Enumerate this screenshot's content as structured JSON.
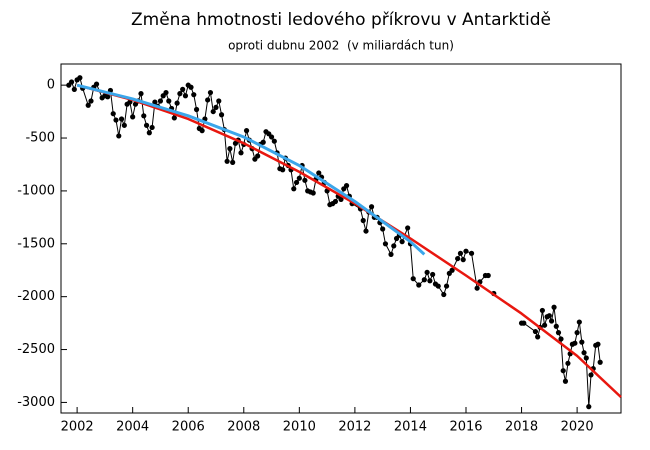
{
  "chart_data": {
    "type": "line",
    "title": "Změna hmotnosti ledového příkrovu v Antarktidě",
    "subtitle": "oproti dubnu 2002  (v miliardách tun)",
    "xlim": [
      2001.42,
      2021.58
    ],
    "ylim": [
      -3100,
      200
    ],
    "xticks": [
      2002,
      2004,
      2006,
      2008,
      2010,
      2012,
      2014,
      2016,
      2018,
      2020
    ],
    "yticks": [
      0,
      -500,
      -1000,
      -1500,
      -2000,
      -2500,
      -3000
    ],
    "series": [
      {
        "color": "#000000",
        "markers": true,
        "x": [
          2001.7,
          2001.8,
          2001.9,
          2002.0,
          2002.1,
          2002.2,
          2002.4,
          2002.5,
          2002.6,
          2002.7,
          2002.9,
          2003.0,
          2003.1,
          2003.2,
          2003.3,
          2003.4,
          2003.5,
          2003.6,
          2003.7,
          2003.8,
          2003.9,
          2004.0,
          2004.1,
          2004.2,
          2004.3,
          2004.4,
          2004.5,
          2004.6,
          2004.7,
          2004.8,
          2004.9,
          2005.0,
          2005.1,
          2005.2,
          2005.3,
          2005.4,
          2005.5,
          2005.6,
          2005.7,
          2005.8,
          2005.9,
          2006.0,
          2006.1,
          2006.2,
          2006.3,
          2006.4,
          2006.5,
          2006.6,
          2006.7,
          2006.8,
          2006.9,
          2007.0,
          2007.1,
          2007.2,
          2007.3,
          2007.4,
          2007.5,
          2007.6,
          2007.7,
          2007.8,
          2007.9,
          2008.0,
          2008.1,
          2008.2,
          2008.3,
          2008.4,
          2008.5,
          2008.6,
          2008.7,
          2008.8,
          2008.9,
          2009.0,
          2009.1,
          2009.2,
          2009.3,
          2009.4,
          2009.5,
          2009.6,
          2009.7,
          2009.8,
          2009.9,
          2010.0,
          2010.1,
          2010.2,
          2010.3,
          2010.4,
          2010.5,
          2010.6,
          2010.7,
          2010.8,
          2010.9,
          2011.0,
          2011.1,
          2011.2,
          2011.3,
          2011.4,
          2011.5,
          2011.6,
          2011.7,
          2011.8,
          2011.9,
          2012.2,
          2012.3,
          2012.4,
          2012.5,
          2012.6,
          2012.7,
          2012.8,
          2012.9,
          2013.0,
          2013.1,
          2013.3,
          2013.4,
          2013.5,
          2013.6,
          2013.7,
          2013.9,
          2014.0,
          2014.1,
          2014.3,
          2014.5,
          2014.6,
          2014.7,
          2014.8,
          2014.9,
          2015.0,
          2015.2,
          2015.3,
          2015.4,
          2015.5,
          2015.7,
          2015.8,
          2015.9,
          2016.0,
          2016.2,
          2016.4,
          2016.5,
          2016.7,
          2016.8,
          2016.9,
          2017.0,
          null,
          2018.0,
          2018.08,
          2018.5,
          2018.58,
          2018.67,
          2018.75,
          2018.83,
          2018.92,
          2019.0,
          2019.08,
          2019.17,
          2019.25,
          2019.33,
          2019.42,
          2019.5,
          2019.58,
          2019.67,
          2019.75,
          2019.83,
          2019.92,
          2020.0,
          2020.08,
          2020.17,
          2020.25,
          2020.33,
          2020.42,
          2020.5,
          2020.58,
          2020.67,
          2020.75,
          2020.83
        ],
        "values": [
          0,
          30,
          -40,
          50,
          70,
          -30,
          -190,
          -150,
          -20,
          10,
          -120,
          -100,
          -110,
          -50,
          -270,
          -330,
          -480,
          -320,
          -380,
          -180,
          -160,
          -300,
          -180,
          -150,
          -80,
          -290,
          -380,
          -450,
          -400,
          -160,
          -200,
          -150,
          -100,
          -70,
          -150,
          -220,
          -310,
          -170,
          -80,
          -40,
          -100,
          0,
          -20,
          -90,
          -230,
          -410,
          -430,
          -320,
          -140,
          -70,
          -250,
          -210,
          -150,
          -280,
          -420,
          -720,
          -600,
          -730,
          -550,
          -520,
          -640,
          -560,
          -430,
          -520,
          -600,
          -700,
          -670,
          -560,
          -540,
          -440,
          -460,
          -490,
          -530,
          -640,
          -790,
          -800,
          -690,
          -760,
          -800,
          -980,
          -920,
          -880,
          -760,
          -900,
          -1000,
          -1010,
          -1020,
          -890,
          -830,
          -870,
          -920,
          -1000,
          -1130,
          -1120,
          -1100,
          -1050,
          -1080,
          -980,
          -950,
          -1050,
          -1120,
          -1170,
          -1280,
          -1380,
          -1200,
          -1150,
          -1250,
          -1250,
          -1300,
          -1360,
          -1500,
          -1600,
          -1520,
          -1450,
          -1420,
          -1480,
          -1350,
          -1500,
          -1830,
          -1890,
          -1840,
          -1770,
          -1850,
          -1790,
          -1880,
          -1900,
          -1980,
          -1900,
          -1780,
          -1750,
          -1640,
          -1590,
          -1650,
          -1570,
          -1590,
          -1920,
          -1860,
          -1800,
          -1800,
          null,
          -1970,
          -1980,
          -2250,
          -2250,
          -2330,
          -2380,
          -2290,
          -2130,
          -2270,
          -2190,
          -2180,
          -2230,
          -2100,
          -2280,
          -2340,
          -2400,
          -2700,
          -2800,
          -2630,
          -2540,
          -2450,
          -2440,
          -2340,
          -2240,
          -2430,
          -2530,
          -2580,
          -3040,
          -2740,
          -2680,
          -2460,
          -2450,
          -2620
        ]
      },
      {
        "color": "#e8170f",
        "x": [
          2002,
          2004,
          2006,
          2008,
          2010,
          2012,
          2014,
          2016,
          2018,
          2020,
          2021.58
        ],
        "values": [
          0,
          -140,
          -320,
          -550,
          -820,
          -1120,
          -1450,
          -1800,
          -2160,
          -2560,
          -2950
        ]
      },
      {
        "color": "#3ba6ea",
        "x": [
          2002,
          2004,
          2006,
          2008,
          2010,
          2012,
          2014,
          2014.5
        ],
        "values": [
          0,
          -130,
          -290,
          -490,
          -760,
          -1100,
          -1480,
          -1600
        ]
      }
    ]
  }
}
